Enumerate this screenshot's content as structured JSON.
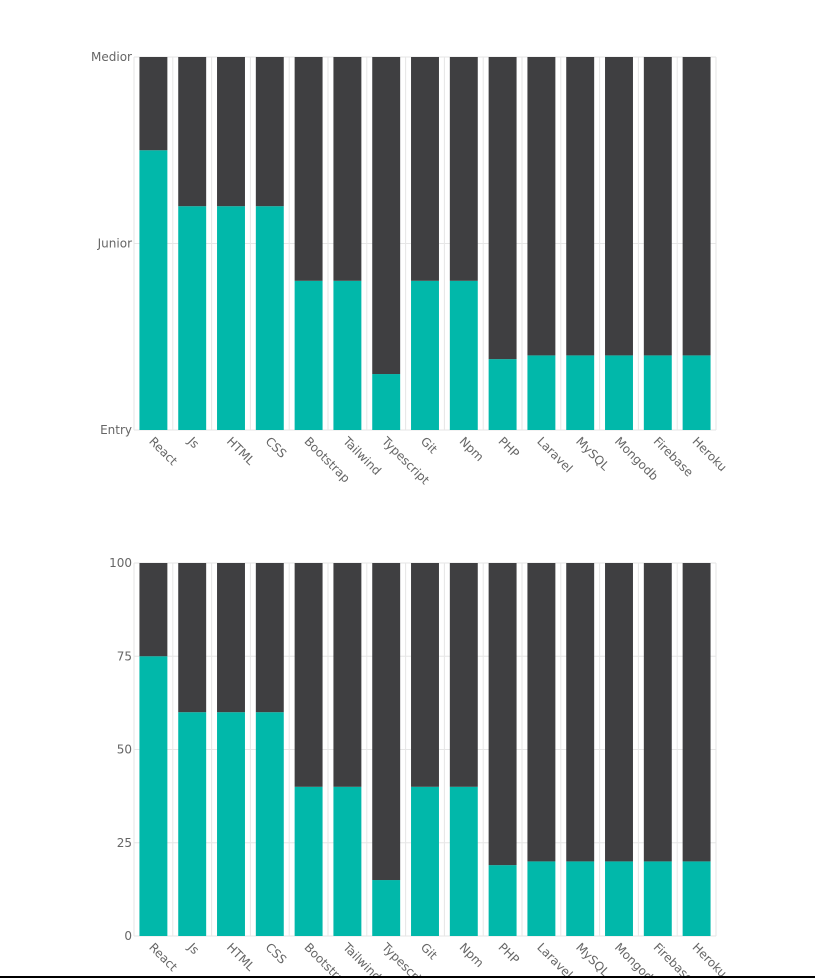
{
  "chart_data": [
    {
      "type": "stacked-bar",
      "categories": [
        "React",
        "Js",
        "HTML",
        "CSS",
        "Bootstrap",
        "Tailwind",
        "Typescript",
        "Git",
        "Npm",
        "PHP",
        "Laravel",
        "MySQL",
        "Mongodb",
        "Firebase",
        "Heroku"
      ],
      "series": [
        {
          "color": "#01b8aa",
          "values": [
            75,
            60,
            60,
            60,
            40,
            40,
            15,
            40,
            40,
            19,
            20,
            20,
            20,
            20,
            20
          ]
        },
        {
          "color": "#3f3f41",
          "values": [
            25,
            40,
            40,
            40,
            60,
            60,
            85,
            60,
            60,
            81,
            80,
            80,
            80,
            80,
            80
          ]
        }
      ],
      "ylim": [
        0,
        100
      ],
      "yticks": [
        {
          "value": 0,
          "label": "Entry"
        },
        {
          "value": 50,
          "label": "Junior"
        },
        {
          "value": 100,
          "label": "Medior"
        }
      ],
      "grid": true
    },
    {
      "type": "stacked-bar",
      "categories": [
        "React",
        "Js",
        "HTML",
        "CSS",
        "Bootstrap",
        "Tailwind",
        "Typescript",
        "Git",
        "Npm",
        "PHP",
        "Laravel",
        "MySQL",
        "Mongodb",
        "Firebase",
        "Heroku"
      ],
      "series": [
        {
          "color": "#01b8aa",
          "values": [
            75,
            60,
            60,
            60,
            40,
            40,
            15,
            40,
            40,
            19,
            20,
            20,
            20,
            20,
            20
          ]
        },
        {
          "color": "#3f3f41",
          "values": [
            25,
            40,
            40,
            40,
            60,
            60,
            85,
            60,
            60,
            81,
            80,
            80,
            80,
            80,
            80
          ]
        }
      ],
      "ylim": [
        0,
        100
      ],
      "yticks": [
        0,
        25,
        50,
        75,
        100
      ],
      "grid": true
    }
  ]
}
